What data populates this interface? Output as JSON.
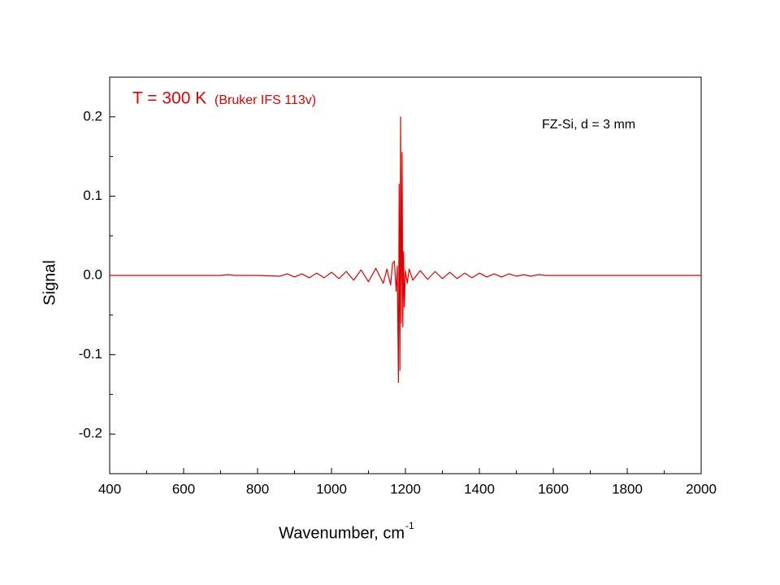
{
  "chart_data": {
    "type": "line",
    "xlabel": "Wavenumber, cm",
    "xlabel_superscript": "-1",
    "ylabel": "Signal",
    "annotations": [
      {
        "text": "T = 300 K",
        "color": "#e00000"
      },
      {
        "text": "(Bruker IFS 113v)",
        "color": "#e00000"
      },
      {
        "text": "FZ-Si,  d = 3 mm",
        "color": "#000000"
      }
    ],
    "xlim": [
      400,
      2000
    ],
    "ylim": [
      -0.25,
      0.25
    ],
    "xticks": [
      400,
      600,
      800,
      1000,
      1200,
      1400,
      1600,
      1800,
      2000
    ],
    "yticks": [
      -0.2,
      -0.1,
      {
        "value": 0,
        "label": "0.0"
      },
      0.1,
      0.2
    ],
    "xminorticks": [
      500,
      700,
      900,
      1100,
      1300,
      1500,
      1700,
      1900
    ],
    "yminorticks": [
      -0.15,
      -0.05,
      0.05,
      0.15
    ],
    "series": [
      {
        "color": "#e00000",
        "x": [
          400,
          700,
          720,
          740,
          800,
          860,
          880,
          900,
          920,
          940,
          960,
          980,
          1000,
          1020,
          1040,
          1060,
          1080,
          1100,
          1120,
          1140,
          1150,
          1160,
          1165,
          1170,
          1175,
          1178,
          1181,
          1183,
          1185,
          1187,
          1189,
          1191,
          1193,
          1195,
          1197,
          1200,
          1205,
          1210,
          1220,
          1240,
          1260,
          1280,
          1300,
          1320,
          1340,
          1360,
          1380,
          1400,
          1420,
          1440,
          1460,
          1480,
          1500,
          1520,
          1540,
          1560,
          1580,
          1600,
          2000
        ],
        "values": [
          0,
          0,
          0.001,
          0,
          0,
          -0.001,
          0.002,
          -0.002,
          0.002,
          -0.003,
          0.003,
          -0.003,
          0.004,
          -0.004,
          0.005,
          -0.006,
          0.007,
          -0.008,
          0.009,
          -0.01,
          0.008,
          -0.012,
          0.015,
          0.018,
          -0.02,
          0.012,
          -0.135,
          0.115,
          -0.12,
          0.2,
          -0.06,
          0.155,
          -0.065,
          0.03,
          -0.04,
          0.006,
          -0.01,
          0.008,
          -0.006,
          0.006,
          -0.005,
          0.005,
          -0.004,
          0.004,
          -0.004,
          0.003,
          -0.003,
          0.003,
          -0.002,
          0.002,
          -0.002,
          0.002,
          -0.001,
          0.001,
          -0.001,
          0.001,
          0,
          0,
          0
        ]
      }
    ]
  }
}
